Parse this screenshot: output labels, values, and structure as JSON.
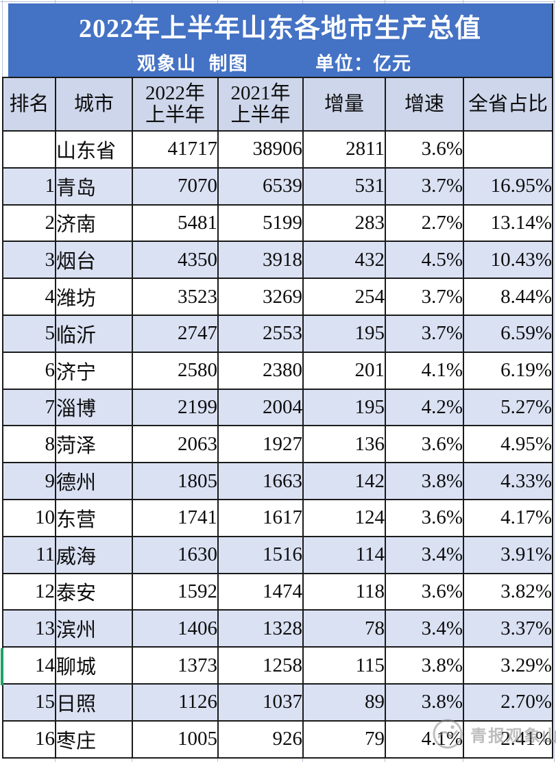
{
  "banner": {
    "title": "2022年上半年山东各地市生产总值",
    "credit": "观象山  制图",
    "unit": "单位：亿元"
  },
  "table": {
    "display_headers": [
      "排名",
      "城市",
      "2022年\n上半年",
      "2021年\n上半年",
      "增量",
      "增速",
      "全省占比"
    ]
  },
  "watermark": {
    "label": "青报观象山",
    "icon": "compass-logo-icon"
  },
  "colors": {
    "banner_bg": "#4472C4",
    "header_row_bg": "#CDD6EA",
    "stripe_row_bg": "#DAE1F3",
    "table_border": "#1A1A1A",
    "row_marker_green": "#1EA362",
    "watermark_gray": "#8A8A8A"
  },
  "chart_data": {
    "type": "table",
    "title": "2022年上半年山东各地市生产总值",
    "credit": "观象山 制图",
    "unit": "单位：亿元",
    "columns": [
      "排名",
      "城市",
      "2022年上半年",
      "2021年上半年",
      "增量",
      "增速",
      "全省占比"
    ],
    "rows": [
      [
        "",
        "山东省",
        "41717",
        "38906",
        "2811",
        "3.6%",
        ""
      ],
      [
        "1",
        "青岛",
        "7070",
        "6539",
        "531",
        "3.7%",
        "16.95%"
      ],
      [
        "2",
        "济南",
        "5481",
        "5199",
        "283",
        "2.7%",
        "13.14%"
      ],
      [
        "3",
        "烟台",
        "4350",
        "3918",
        "432",
        "4.5%",
        "10.43%"
      ],
      [
        "4",
        "潍坊",
        "3523",
        "3269",
        "254",
        "3.7%",
        "8.44%"
      ],
      [
        "5",
        "临沂",
        "2747",
        "2553",
        "195",
        "3.7%",
        "6.59%"
      ],
      [
        "6",
        "济宁",
        "2580",
        "2380",
        "201",
        "4.1%",
        "6.19%"
      ],
      [
        "7",
        "淄博",
        "2199",
        "2004",
        "195",
        "4.2%",
        "5.27%"
      ],
      [
        "8",
        "菏泽",
        "2063",
        "1927",
        "136",
        "3.6%",
        "4.95%"
      ],
      [
        "9",
        "德州",
        "1805",
        "1663",
        "142",
        "3.8%",
        "4.33%"
      ],
      [
        "10",
        "东营",
        "1741",
        "1617",
        "124",
        "3.6%",
        "4.17%"
      ],
      [
        "11",
        "威海",
        "1630",
        "1516",
        "114",
        "3.4%",
        "3.91%"
      ],
      [
        "12",
        "泰安",
        "1592",
        "1474",
        "118",
        "3.6%",
        "3.82%"
      ],
      [
        "13",
        "滨州",
        "1406",
        "1328",
        "78",
        "3.4%",
        "3.37%"
      ],
      [
        "14",
        "聊城",
        "1373",
        "1258",
        "115",
        "3.8%",
        "3.29%"
      ],
      [
        "15",
        "日照",
        "1126",
        "1037",
        "89",
        "3.8%",
        "2.70%"
      ],
      [
        "16",
        "枣庄",
        "1005",
        "926",
        "79",
        "4.1%",
        "2.41%"
      ]
    ]
  }
}
